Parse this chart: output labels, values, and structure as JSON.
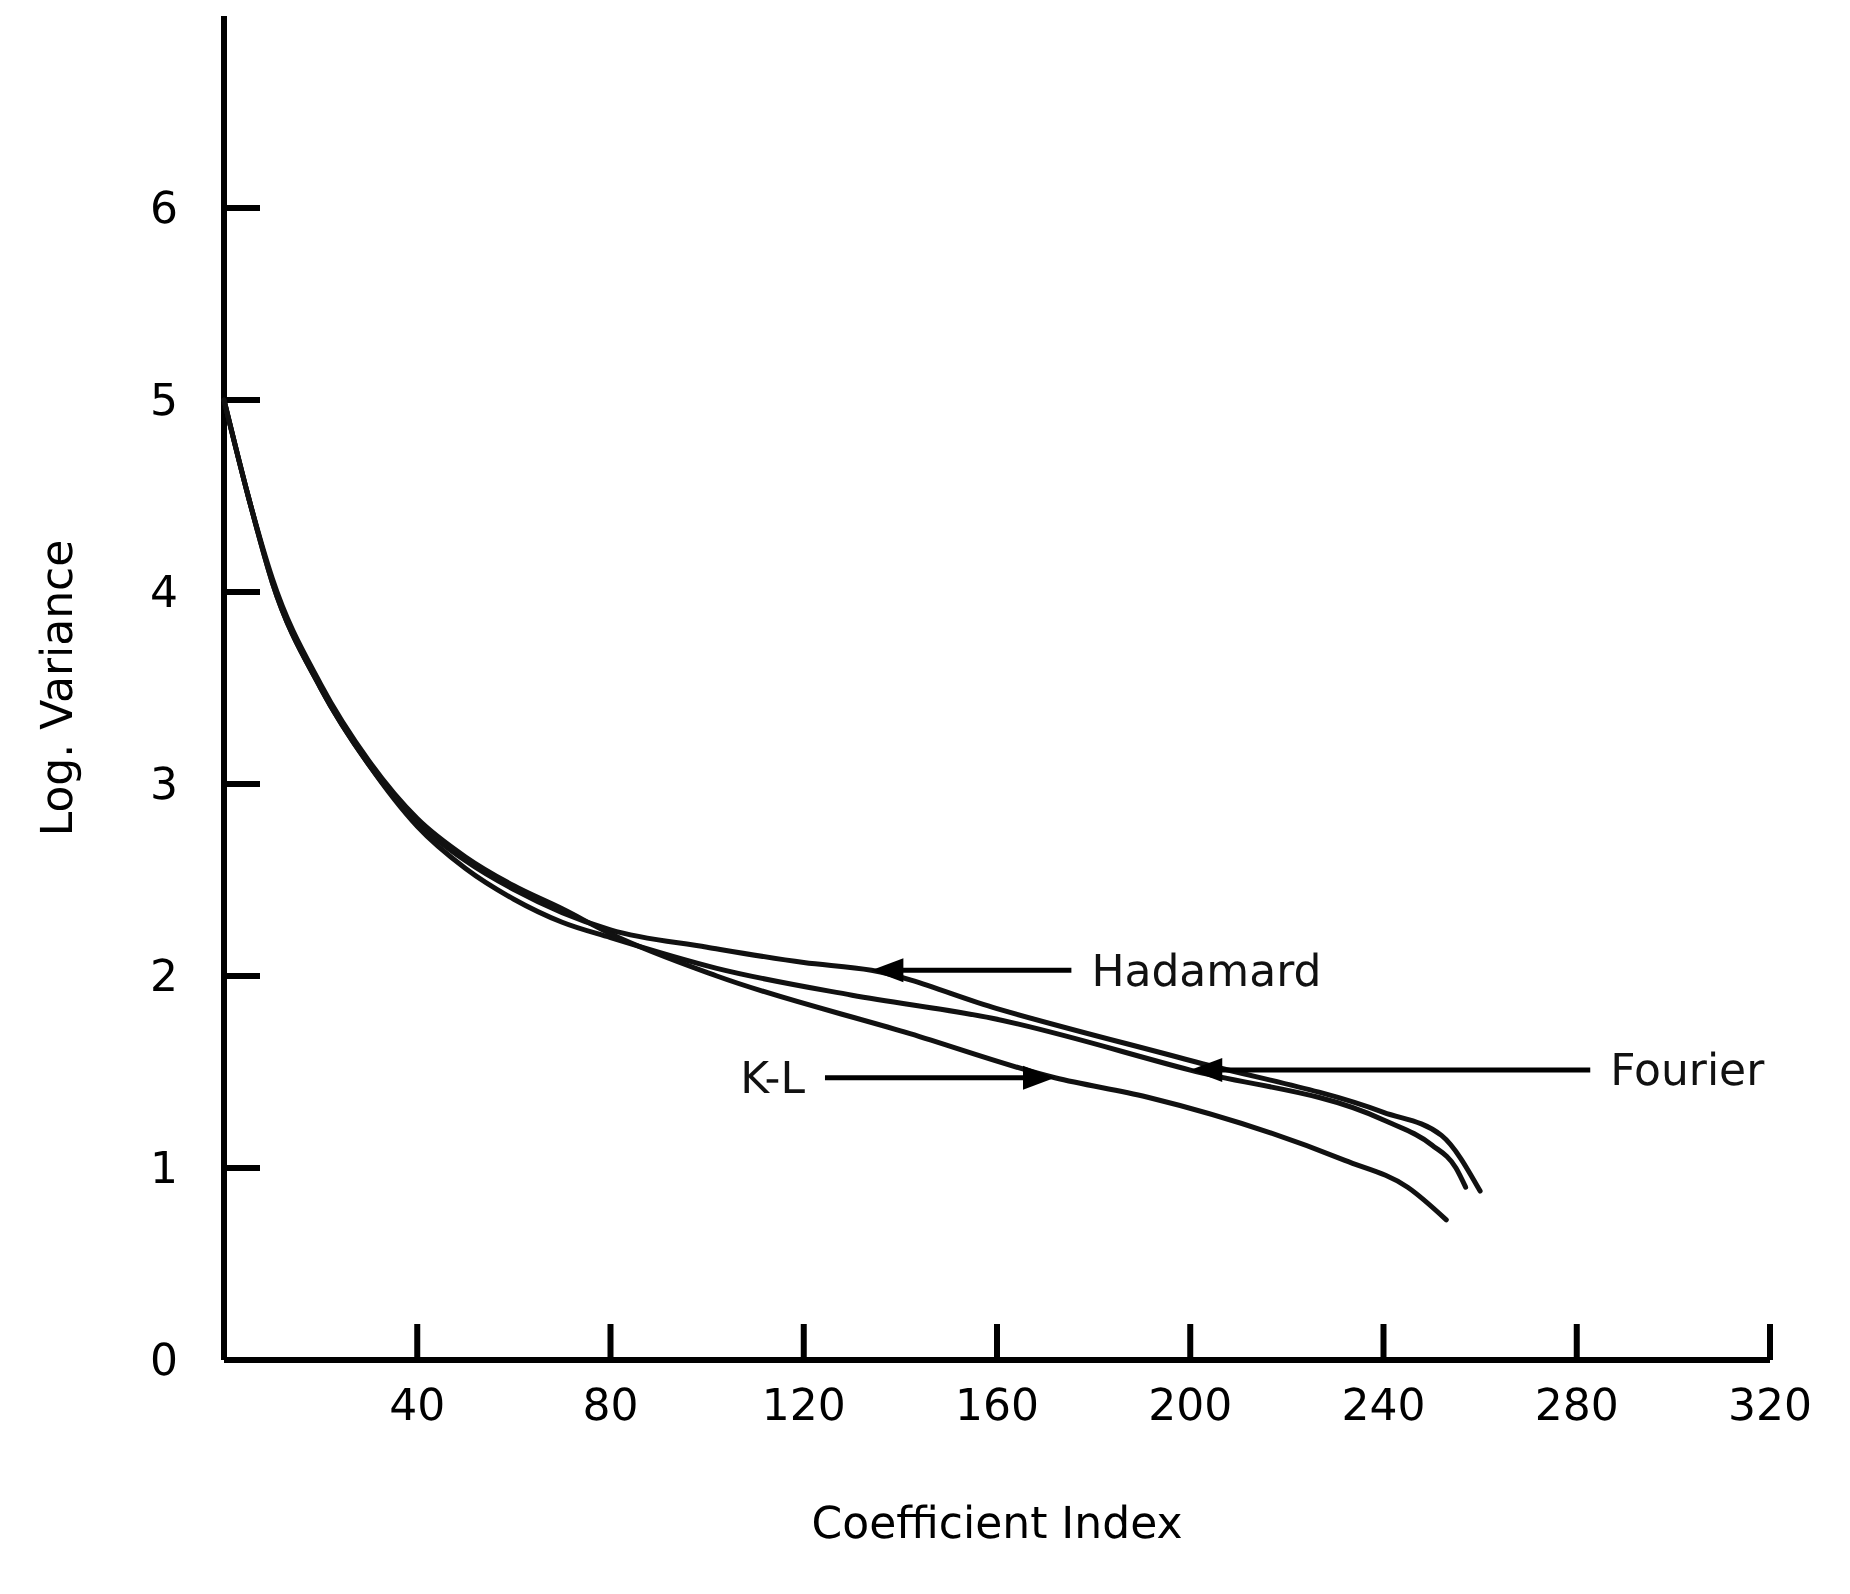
{
  "chart_data": {
    "type": "line",
    "xlabel": "Coefficient Index",
    "ylabel": "Log. Variance",
    "xlim": [
      0,
      320
    ],
    "ylim": [
      0,
      7
    ],
    "xticks": [
      40,
      80,
      120,
      160,
      200,
      240,
      280,
      320
    ],
    "yticks": [
      0,
      1,
      2,
      3,
      4,
      5,
      6
    ],
    "grid": false,
    "marker": "none",
    "line_style": "solid",
    "series": [
      {
        "name": "Hadamard",
        "color": "#111111",
        "x": [
          0,
          5,
          10,
          20,
          30,
          40,
          50,
          60,
          70,
          80,
          100,
          120,
          134,
          160,
          200,
          240,
          252,
          260
        ],
        "values": [
          5.0,
          4.5,
          4.05,
          3.5,
          3.1,
          2.8,
          2.6,
          2.45,
          2.33,
          2.24,
          2.15,
          2.07,
          2.03,
          1.83,
          1.56,
          1.29,
          1.17,
          0.88
        ]
      },
      {
        "name": "Fourier",
        "color": "#111111",
        "x": [
          0,
          5,
          10,
          20,
          30,
          40,
          50,
          60,
          70,
          80,
          102,
          130,
          159,
          200,
          240,
          250,
          255,
          257
        ],
        "values": [
          5.0,
          4.5,
          4.05,
          3.5,
          3.1,
          2.78,
          2.56,
          2.4,
          2.28,
          2.2,
          2.04,
          1.9,
          1.78,
          1.51,
          1.25,
          1.12,
          1.0,
          0.9
        ]
      },
      {
        "name": "K-L",
        "color": "#111111",
        "x": [
          0,
          5,
          10,
          20,
          30,
          40,
          50,
          60,
          70,
          80,
          102,
          142,
          172,
          191,
          232,
          245,
          253
        ],
        "values": [
          5.0,
          4.5,
          4.07,
          3.52,
          3.12,
          2.82,
          2.62,
          2.47,
          2.35,
          2.22,
          2.0,
          1.7,
          1.47,
          1.37,
          1.04,
          0.9,
          0.73
        ]
      }
    ]
  }
}
